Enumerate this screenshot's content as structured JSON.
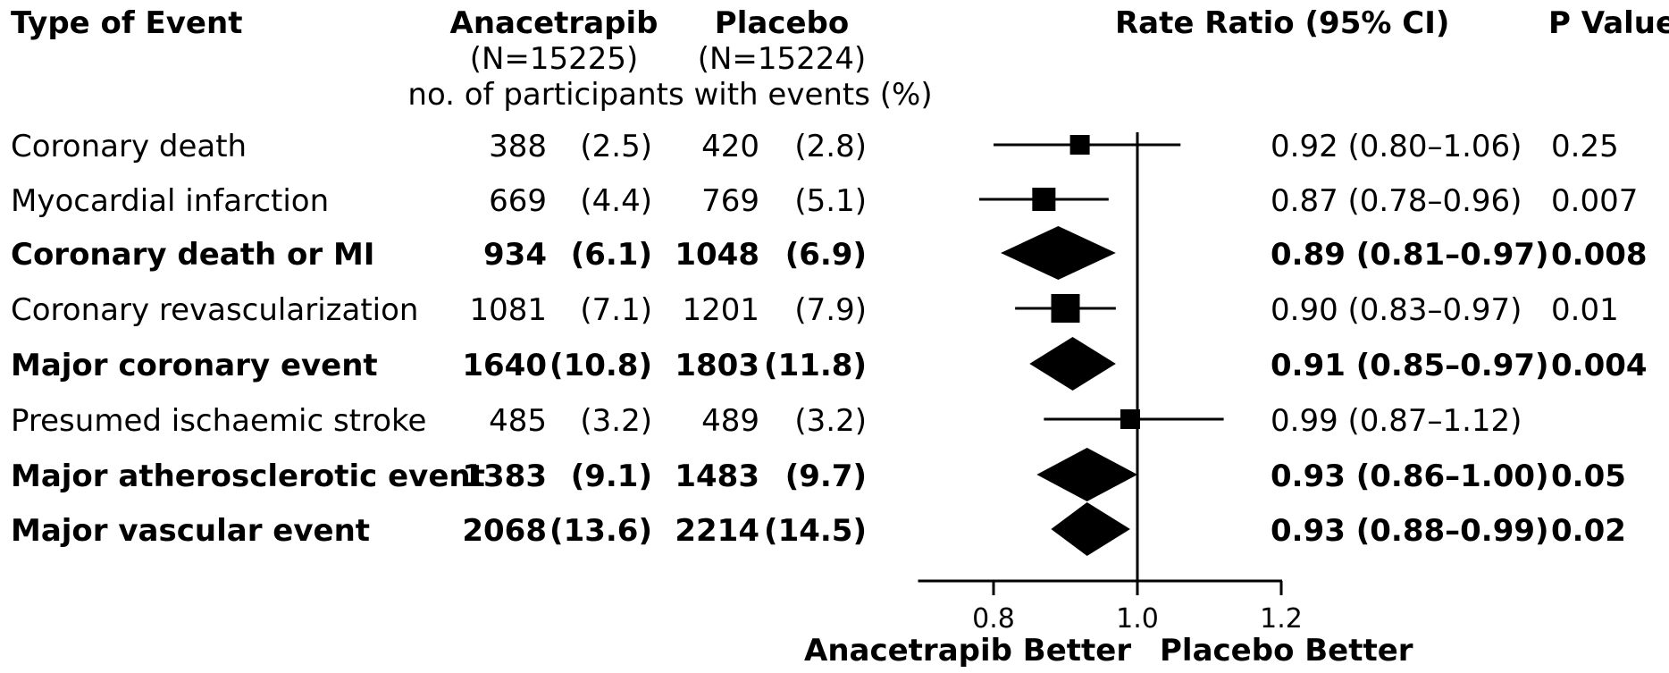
{
  "headers": {
    "type_of_event": "Type of Event",
    "arm1_name": "Anacetrapib",
    "arm1_n": "(N=15225)",
    "arm2_name": "Placebo",
    "arm2_n": "(N=15224)",
    "subheader": "no. of participants with events (%)",
    "rate_ratio": "Rate Ratio (95% CI)",
    "p_value": "P Value"
  },
  "chart_data": {
    "type": "forest",
    "x_ticks": [
      "0.8",
      "1.0",
      "1.2"
    ],
    "xlim": [
      0.7,
      1.2
    ],
    "reference_line": 1.0,
    "xlabel_left": "Anacetrapib Better",
    "xlabel_right": "Placebo Better",
    "rows": [
      {
        "label": "Coronary death",
        "bold": false,
        "marker": "square",
        "marker_size": "small",
        "arm1_n": "388",
        "arm1_pct": "(2.5)",
        "arm2_n": "420",
        "arm2_pct": "(2.8)",
        "rr": 0.92,
        "lo": 0.8,
        "hi": 1.06,
        "rr_text": "0.92 (0.80–1.06)",
        "p": "0.25"
      },
      {
        "label": "Myocardial infarction",
        "bold": false,
        "marker": "square",
        "marker_size": "medium",
        "arm1_n": "669",
        "arm1_pct": "(4.4)",
        "arm2_n": "769",
        "arm2_pct": "(5.1)",
        "rr": 0.87,
        "lo": 0.78,
        "hi": 0.96,
        "rr_text": "0.87 (0.78–0.96)",
        "p": "0.007"
      },
      {
        "label": "Coronary death or MI",
        "bold": true,
        "marker": "diamond",
        "arm1_n": "934",
        "arm1_pct": "(6.1)",
        "arm2_n": "1048",
        "arm2_pct": "(6.9)",
        "rr": 0.89,
        "lo": 0.81,
        "hi": 0.97,
        "rr_text": "0.89 (0.81–0.97)",
        "p": "0.008"
      },
      {
        "label": "Coronary revascularization",
        "bold": false,
        "marker": "square",
        "marker_size": "large",
        "arm1_n": "1081",
        "arm1_pct": "(7.1)",
        "arm2_n": "1201",
        "arm2_pct": "(7.9)",
        "rr": 0.9,
        "lo": 0.83,
        "hi": 0.97,
        "rr_text": "0.90 (0.83–0.97)",
        "p": "0.01"
      },
      {
        "label": "Major coronary event",
        "bold": true,
        "marker": "diamond",
        "arm1_n": "1640",
        "arm1_pct": "(10.8)",
        "arm2_n": "1803",
        "arm2_pct": "(11.8)",
        "rr": 0.91,
        "lo": 0.85,
        "hi": 0.97,
        "rr_text": "0.91 (0.85–0.97)",
        "p": "0.004"
      },
      {
        "label": "Presumed ischaemic stroke",
        "bold": false,
        "marker": "square",
        "marker_size": "small",
        "arm1_n": "485",
        "arm1_pct": "(3.2)",
        "arm2_n": "489",
        "arm2_pct": "(3.2)",
        "rr": 0.99,
        "lo": 0.87,
        "hi": 1.12,
        "rr_text": "0.99 (0.87–1.12)",
        "p": ""
      },
      {
        "label": "Major atherosclerotic event",
        "bold": true,
        "marker": "diamond",
        "arm1_n": "1383",
        "arm1_pct": "(9.1)",
        "arm2_n": "1483",
        "arm2_pct": "(9.7)",
        "rr": 0.93,
        "lo": 0.86,
        "hi": 1.0,
        "rr_text": "0.93 (0.86–1.00)",
        "p": "0.05"
      },
      {
        "label": "Major vascular event",
        "bold": true,
        "marker": "diamond",
        "arm1_n": "2068",
        "arm1_pct": "(13.6)",
        "arm2_n": "2214",
        "arm2_pct": "(14.5)",
        "rr": 0.93,
        "lo": 0.88,
        "hi": 0.99,
        "rr_text": "0.93 (0.88–0.99)",
        "p": "0.02"
      }
    ]
  }
}
